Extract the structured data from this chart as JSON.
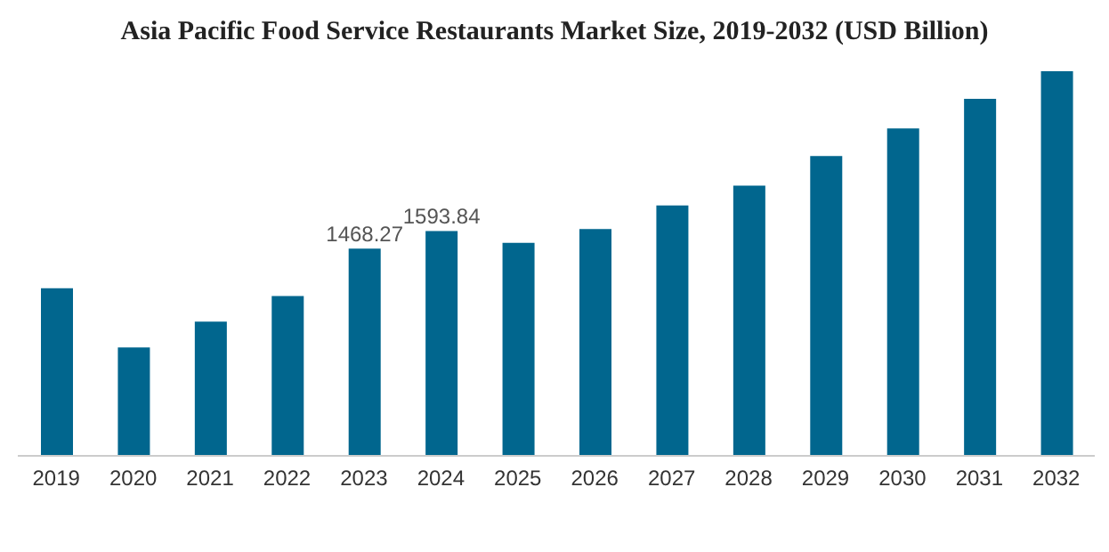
{
  "chart_data": {
    "type": "bar",
    "title": "Asia Pacific Food Service Restaurants Market Size, 2019-2032 (USD Billion)",
    "categories": [
      "2019",
      "2020",
      "2021",
      "2022",
      "2023",
      "2024",
      "2025",
      "2026",
      "2027",
      "2028",
      "2029",
      "2030",
      "2031",
      "2032"
    ],
    "values": [
      1188,
      769,
      951,
      1132,
      1468.27,
      1593.84,
      1510,
      1608,
      1775,
      1915,
      2125,
      2320,
      2530,
      2726
    ],
    "value_labels": [
      null,
      null,
      null,
      null,
      "1468.27",
      "1593.84",
      null,
      null,
      null,
      null,
      null,
      null,
      null,
      null
    ],
    "color": "#01668e",
    "grid": false,
    "legend": false
  }
}
